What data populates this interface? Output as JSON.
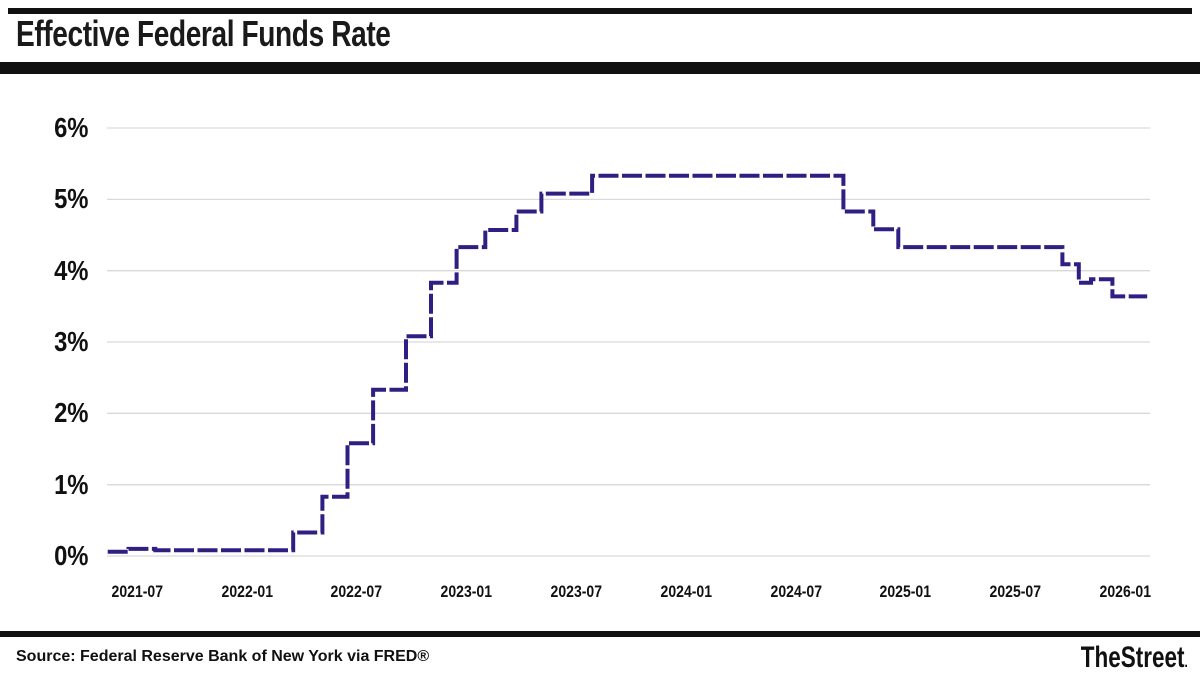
{
  "header": {
    "title": "Effective Federal Funds Rate"
  },
  "footer": {
    "source": "Source: Federal Reserve Bank of New York via FRED®",
    "brand": "TheStreet",
    "brand_period": "."
  },
  "colors": {
    "line": "#2e2083",
    "grid": "#d9d9d9",
    "rule": "#111111",
    "text": "#111111"
  },
  "chart_data": {
    "type": "line",
    "style": "step-after",
    "title": "Effective Federal Funds Rate",
    "xlabel": "",
    "ylabel": "",
    "ylim": [
      0,
      6
    ],
    "grid": "horizontal-only",
    "legend": "none",
    "line_dashed": true,
    "y_ticks": [
      "0%",
      "1%",
      "2%",
      "3%",
      "4%",
      "5%",
      "6%"
    ],
    "y_tick_values": [
      0,
      1,
      2,
      3,
      4,
      5,
      6
    ],
    "x_ticks": [
      "2021-07",
      "2022-01",
      "2022-07",
      "2023-01",
      "2023-07",
      "2024-01",
      "2024-07",
      "2025-01",
      "2025-07",
      "2026-01"
    ],
    "start_date": "2021-05-13",
    "end_date": "2026-02-07",
    "series": [
      {
        "name": "Effective Federal Funds Rate (percent)",
        "points": [
          {
            "date": "2021-05-13",
            "value": 0.06
          },
          {
            "date": "2021-06-17",
            "value": 0.1
          },
          {
            "date": "2021-08-01",
            "value": 0.08
          },
          {
            "date": "2022-03-17",
            "value": 0.33
          },
          {
            "date": "2022-05-05",
            "value": 0.83
          },
          {
            "date": "2022-06-16",
            "value": 1.58
          },
          {
            "date": "2022-07-28",
            "value": 2.33
          },
          {
            "date": "2022-09-22",
            "value": 3.08
          },
          {
            "date": "2022-11-03",
            "value": 3.83
          },
          {
            "date": "2022-12-15",
            "value": 4.33
          },
          {
            "date": "2023-02-02",
            "value": 4.57
          },
          {
            "date": "2023-03-23",
            "value": 4.83
          },
          {
            "date": "2023-05-04",
            "value": 5.08
          },
          {
            "date": "2023-07-27",
            "value": 5.33
          },
          {
            "date": "2024-09-19",
            "value": 4.83
          },
          {
            "date": "2024-11-08",
            "value": 4.58
          },
          {
            "date": "2024-12-19",
            "value": 4.33
          },
          {
            "date": "2025-09-18",
            "value": 4.09
          },
          {
            "date": "2025-10-15",
            "value": 3.83
          },
          {
            "date": "2025-11-05",
            "value": 3.88
          },
          {
            "date": "2025-12-10",
            "value": 3.64
          }
        ]
      }
    ]
  }
}
